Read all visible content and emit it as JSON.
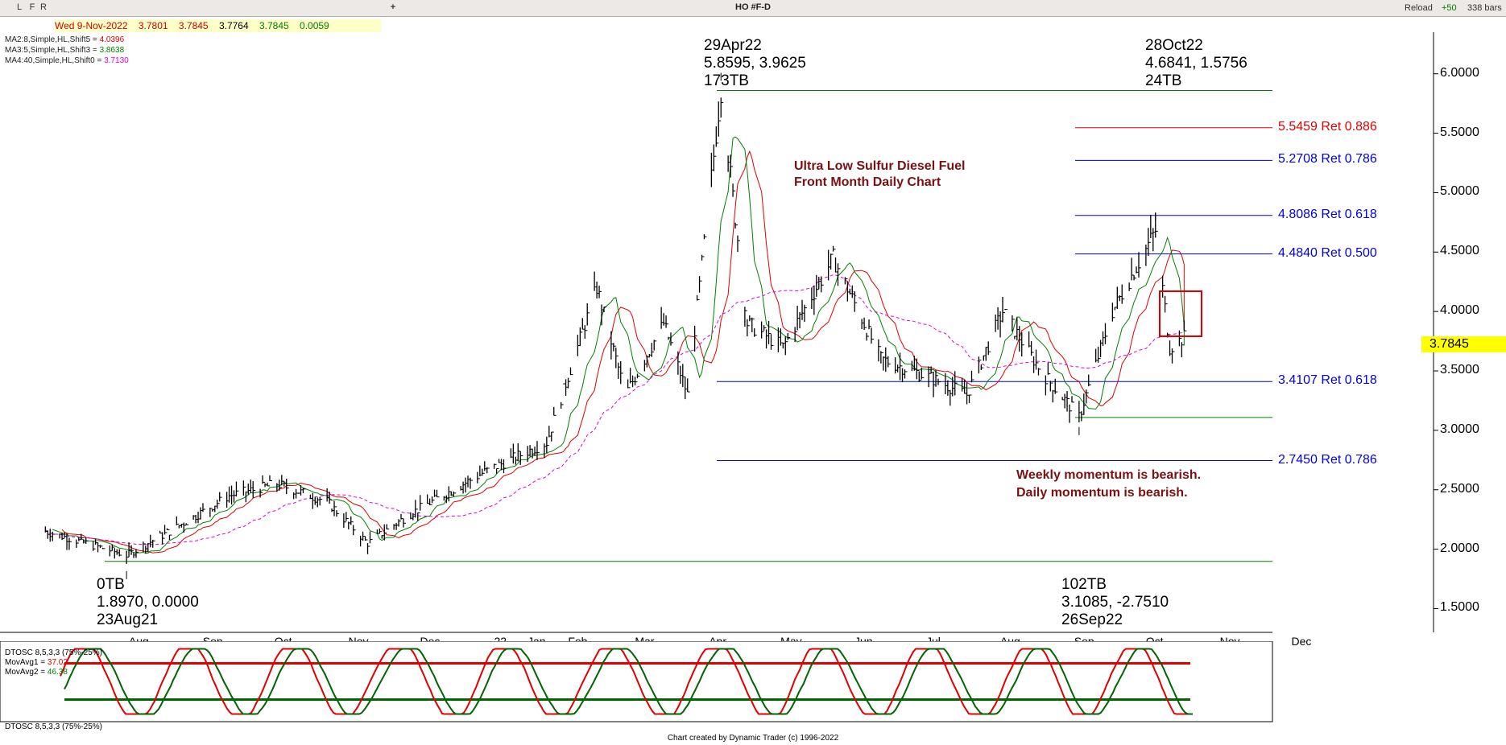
{
  "toolbar": {
    "buttons": [
      "L",
      "F",
      "R"
    ],
    "add_label": "+",
    "symbol_title": "HO #F-D",
    "reload_label": "Reload",
    "reload_count": "+50",
    "bars_label": "338 bars"
  },
  "quote": {
    "date": "Wed 9-Nov-2022",
    "open": "3.7801",
    "high": "3.7845",
    "low": "3.7764",
    "close": "3.7845",
    "change": "0.0059"
  },
  "moving_averages": [
    {
      "label": "MA2:8,Simple,HL,Shift5 = ",
      "value": "4.0396",
      "color": "#e00000"
    },
    {
      "label": "MA3:5,Simple,HL,Shift3 = ",
      "value": "3.8638",
      "color": "#008000"
    },
    {
      "label": "MA4:40,Simple,HL,Shift0 = ",
      "value": "3.7130",
      "color": "#e000e0"
    }
  ],
  "last_price": "3.7845",
  "annotations": {
    "high_2204": [
      "29Apr22",
      "5.8595, 3.9625",
      "173TB"
    ],
    "high_2210": [
      "28Oct22",
      "4.6841, 1.5756",
      "24TB"
    ],
    "low_2108": [
      "0TB",
      "1.8970, 0.0000",
      "23Aug21"
    ],
    "low_2209": [
      "102TB",
      "3.1085, -2.7510",
      "26Sep22"
    ],
    "title_lines": [
      "Ultra Low Sulfur Diesel Fuel",
      "Front Month Daily Chart"
    ],
    "momentum_lines": [
      "Weekly momentum is bearish.",
      "Daily momentum is bearish."
    ]
  },
  "retracements": [
    {
      "label": "5.5459 Ret 0.886",
      "price": 5.5459,
      "color": "#e00000"
    },
    {
      "label": "5.2708 Ret 0.786",
      "price": 5.2708,
      "color": "#0000e0"
    },
    {
      "label": "4.8086 Ret 0.618",
      "price": 4.8086,
      "color": "#0000e0"
    },
    {
      "label": "4.4840 Ret 0.500",
      "price": 4.484,
      "color": "#0000e0"
    },
    {
      "label": "3.4107 Ret 0.618",
      "price": 3.4107,
      "color": "#0000e0"
    },
    {
      "label": "2.7450 Ret 0.786",
      "price": 2.745,
      "color": "#0000e0"
    }
  ],
  "chart_data": {
    "type": "ohlc",
    "ylim": [
      1.3,
      6.35
    ],
    "y_ticks": [
      "6.0000",
      "5.5000",
      "5.0000",
      "4.5000",
      "4.0000",
      "3.5000",
      "3.0000",
      "2.5000",
      "2.0000",
      "1.5000"
    ],
    "x_ticks": [
      "Aug",
      "Sep",
      "Oct",
      "Nov",
      "Dec",
      "22",
      "Jan",
      "Feb",
      "Mar",
      "Apr",
      "May",
      "Jun",
      "Jul",
      "Aug",
      "Sep",
      "Oct",
      "Nov",
      "Dec"
    ],
    "x_tick_dates": [
      "2021-08-01",
      "2021-09-01",
      "2021-10-01",
      "2021-11-01",
      "2021-12-01",
      "2022-01-01",
      "2022-01-15",
      "2022-02-01",
      "2022-03-01",
      "2022-04-01",
      "2022-05-01",
      "2022-06-01",
      "2022-07-01",
      "2022-08-01",
      "2022-09-01",
      "2022-10-01",
      "2022-11-01",
      "2022-12-01"
    ],
    "price_path": [
      {
        "date": "2021-07-20",
        "price": 2.15
      },
      {
        "date": "2021-08-23",
        "price": 1.95
      },
      {
        "date": "2021-09-10",
        "price": 2.15
      },
      {
        "date": "2021-10-05",
        "price": 2.45
      },
      {
        "date": "2021-10-25",
        "price": 2.55
      },
      {
        "date": "2021-11-15",
        "price": 2.4
      },
      {
        "date": "2021-12-02",
        "price": 2.05
      },
      {
        "date": "2021-12-20",
        "price": 2.3
      },
      {
        "date": "2022-01-20",
        "price": 2.65
      },
      {
        "date": "2022-02-15",
        "price": 2.9
      },
      {
        "date": "2022-03-08",
        "price": 4.2
      },
      {
        "date": "2022-03-20",
        "price": 3.3
      },
      {
        "date": "2022-04-05",
        "price": 3.9
      },
      {
        "date": "2022-04-15",
        "price": 3.3
      },
      {
        "date": "2022-04-29",
        "price": 5.86
      },
      {
        "date": "2022-05-10",
        "price": 3.9
      },
      {
        "date": "2022-05-25",
        "price": 3.7
      },
      {
        "date": "2022-06-15",
        "price": 4.45
      },
      {
        "date": "2022-07-05",
        "price": 3.6
      },
      {
        "date": "2022-07-25",
        "price": 3.45
      },
      {
        "date": "2022-08-10",
        "price": 3.3
      },
      {
        "date": "2022-08-25",
        "price": 4.0
      },
      {
        "date": "2022-09-10",
        "price": 3.5
      },
      {
        "date": "2022-09-26",
        "price": 3.11
      },
      {
        "date": "2022-10-10",
        "price": 4.0
      },
      {
        "date": "2022-10-28",
        "price": 4.68
      },
      {
        "date": "2022-11-03",
        "price": 3.7
      },
      {
        "date": "2022-11-09",
        "price": 3.78
      }
    ],
    "horizontal_lines": [
      {
        "price": 5.8595,
        "color": "#008000"
      },
      {
        "price": 3.1085,
        "color": "#008000"
      },
      {
        "price": 1.897,
        "color": "#008000"
      }
    ],
    "oscillator": {
      "label": "DTOSC 8,5,3,3 (75%-25%)",
      "movavg1_label": "MovAvg1 = ",
      "movavg1_value": "37.02",
      "movavg2_label": "MovAvg2 = ",
      "movavg2_value": "46.38",
      "upper_band": 75,
      "lower_band": 25,
      "footer_label": "DTOSC 8,5,3,3 (75%-25%)"
    }
  },
  "footer": "Chart created by Dynamic Trader  (c)  1996-2022"
}
